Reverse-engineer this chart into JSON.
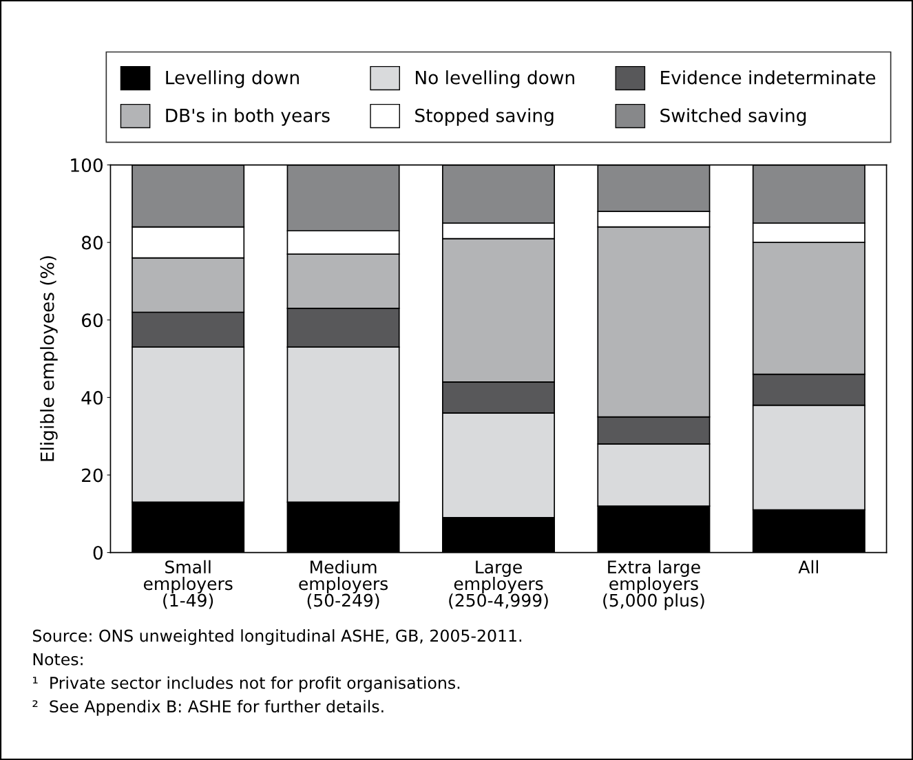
{
  "chart_data": {
    "type": "bar",
    "stacked": true,
    "ylabel": "Eligible employees (%)",
    "categories": [
      "Small\nemployers\n(1-49)",
      "Medium\nemployers\n(50-249)",
      "Large\nemployers\n(250-4,999)",
      "Extra large\nemployers\n(5,000 plus)",
      "All"
    ],
    "series": [
      {
        "name": "Levelling down",
        "color": "#000000",
        "values": [
          13,
          13,
          9,
          12,
          11
        ]
      },
      {
        "name": "No levelling down",
        "color": "#d9dadc",
        "values": [
          40,
          40,
          27,
          16,
          27
        ]
      },
      {
        "name": "Evidence indeterminate",
        "color": "#58585a",
        "values": [
          9,
          10,
          8,
          7,
          8
        ]
      },
      {
        "name": "DB's in both years",
        "color": "#b3b4b6",
        "values": [
          14,
          14,
          37,
          49,
          34
        ]
      },
      {
        "name": "Stopped saving",
        "color": "#ffffff",
        "values": [
          8,
          6,
          4,
          4,
          5
        ]
      },
      {
        "name": "Switched saving",
        "color": "#87888a",
        "values": [
          16,
          17,
          15,
          12,
          15
        ]
      }
    ],
    "ylim": [
      0,
      100
    ],
    "yticks": [
      0,
      20,
      40,
      60,
      80,
      100
    ],
    "grid": false,
    "legend": "top",
    "annotations": [
      "Source: ONS unweighted longitudinal ASHE, GB, 2005-2011.",
      "Notes:",
      "¹  Private sector includes not for profit organisations.",
      "²  See Appendix B: ASHE for further details."
    ]
  }
}
